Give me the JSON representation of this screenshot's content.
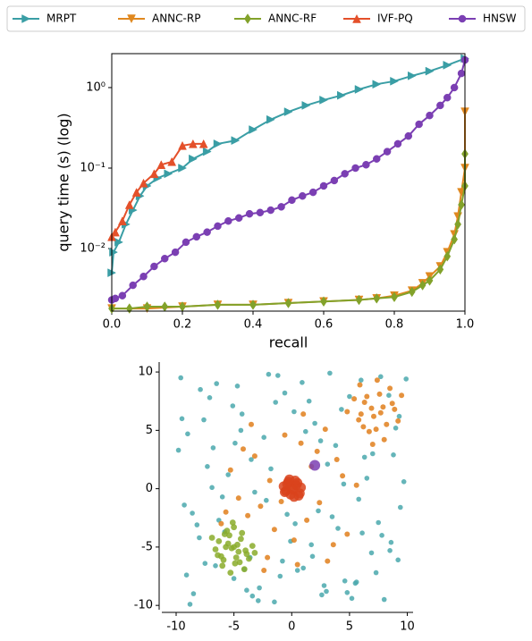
{
  "chart_data": [
    {
      "type": "line",
      "xlabel": "recall",
      "ylabel": "query time (s) (log)",
      "yscale": "log",
      "legend": "top",
      "frame": true,
      "xlim": [
        0,
        1
      ],
      "ylim": [
        0.00167,
        2.64
      ],
      "xticks": [
        {
          "value": 0,
          "label": "0.0"
        },
        0.2,
        0.4,
        0.6,
        0.8,
        {
          "value": 1,
          "label": "1.0"
        }
      ],
      "yticks": [
        {
          "value": 0.01,
          "label": "10⁻²"
        },
        {
          "value": 0.1,
          "label": "10⁻¹"
        },
        {
          "value": 1,
          "label": "10⁰"
        }
      ],
      "series": [
        {
          "name": "MRPT",
          "color": "#3a9ea5",
          "marker": "triangle-right",
          "x": [
            0.0,
            0.005,
            0.02,
            0.04,
            0.06,
            0.08,
            0.1,
            0.13,
            0.16,
            0.2,
            0.23,
            0.27,
            0.3,
            0.35,
            0.4,
            0.45,
            0.5,
            0.55,
            0.6,
            0.65,
            0.7,
            0.75,
            0.8,
            0.85,
            0.9,
            0.95,
            1.0
          ],
          "values": [
            0.005,
            0.009,
            0.012,
            0.02,
            0.03,
            0.045,
            0.06,
            0.075,
            0.085,
            0.1,
            0.13,
            0.16,
            0.2,
            0.22,
            0.3,
            0.4,
            0.5,
            0.6,
            0.7,
            0.8,
            0.95,
            1.1,
            1.2,
            1.4,
            1.6,
            1.9,
            2.3
          ]
        },
        {
          "name": "ANNC-RP",
          "color": "#e0881f",
          "marker": "triangle-down",
          "x": [
            0.0,
            0.1,
            0.2,
            0.3,
            0.4,
            0.5,
            0.6,
            0.7,
            0.75,
            0.8,
            0.85,
            0.88,
            0.9,
            0.93,
            0.95,
            0.97,
            0.98,
            0.99,
            1.0,
            1.0
          ],
          "values": [
            0.0018,
            0.0018,
            0.0019,
            0.002,
            0.002,
            0.0021,
            0.0022,
            0.0023,
            0.0024,
            0.0026,
            0.003,
            0.0037,
            0.0045,
            0.006,
            0.009,
            0.015,
            0.025,
            0.05,
            0.1,
            0.5
          ]
        },
        {
          "name": "ANNC-RF",
          "color": "#82a22a",
          "marker": "diamond",
          "x": [
            0.0,
            0.05,
            0.1,
            0.15,
            0.2,
            0.3,
            0.4,
            0.5,
            0.6,
            0.7,
            0.75,
            0.8,
            0.85,
            0.88,
            0.9,
            0.93,
            0.95,
            0.97,
            0.98,
            0.99,
            1.0,
            1.0
          ],
          "values": [
            0.0018,
            0.0018,
            0.0019,
            0.0019,
            0.0019,
            0.002,
            0.002,
            0.0021,
            0.0022,
            0.0023,
            0.0024,
            0.0025,
            0.0029,
            0.0035,
            0.004,
            0.0055,
            0.008,
            0.013,
            0.02,
            0.035,
            0.06,
            0.15
          ]
        },
        {
          "name": "IVF-PQ",
          "color": "#e4502a",
          "marker": "triangle-up",
          "x": [
            0.0,
            0.01,
            0.03,
            0.05,
            0.07,
            0.09,
            0.12,
            0.14,
            0.17,
            0.2,
            0.23,
            0.26
          ],
          "values": [
            0.014,
            0.016,
            0.022,
            0.035,
            0.05,
            0.065,
            0.085,
            0.11,
            0.12,
            0.19,
            0.2,
            0.2
          ]
        },
        {
          "name": "HNSW",
          "color": "#7b3fb3",
          "marker": "circle",
          "x": [
            0.0,
            0.01,
            0.03,
            0.06,
            0.09,
            0.12,
            0.15,
            0.18,
            0.21,
            0.24,
            0.27,
            0.3,
            0.33,
            0.36,
            0.39,
            0.42,
            0.45,
            0.48,
            0.51,
            0.54,
            0.57,
            0.6,
            0.63,
            0.66,
            0.69,
            0.72,
            0.75,
            0.78,
            0.81,
            0.84,
            0.87,
            0.9,
            0.93,
            0.95,
            0.97,
            0.99,
            1.0
          ],
          "values": [
            0.0023,
            0.0024,
            0.0026,
            0.0035,
            0.0045,
            0.006,
            0.0075,
            0.009,
            0.012,
            0.014,
            0.016,
            0.019,
            0.022,
            0.024,
            0.027,
            0.028,
            0.03,
            0.033,
            0.04,
            0.045,
            0.05,
            0.06,
            0.07,
            0.085,
            0.1,
            0.11,
            0.13,
            0.16,
            0.2,
            0.25,
            0.35,
            0.45,
            0.6,
            0.75,
            1.0,
            1.5,
            2.2
          ]
        }
      ]
    },
    {
      "type": "scatter",
      "xlim": [
        -11.47,
        10.5
      ],
      "ylim": [
        -10.6,
        10.85
      ],
      "xticks": [
        -10,
        -5,
        0,
        5,
        10
      ],
      "yticks": [
        -10,
        -5,
        0,
        5,
        10
      ],
      "series": [
        {
          "color": "#4aa8ad",
          "x": [
            -9.6,
            -8.2,
            -7.1,
            -5.5,
            -3.9,
            -2.4,
            -0.8,
            0.9,
            2.3,
            3.8,
            5.2,
            6.9,
            8.4,
            9.7,
            -9.1,
            -7.6,
            -6.3,
            -4.7,
            -3.2,
            -1.5,
            0.2,
            1.7,
            3.1,
            4.6,
            6.1,
            7.7,
            9.2,
            -9.8,
            -8.5,
            -6.9,
            -5.1,
            -3.6,
            -2.0,
            -0.4,
            1.2,
            2.8,
            4.3,
            5.8,
            7.3,
            8.8,
            -9.3,
            -7.9,
            -6.6,
            -4.9,
            -3.4,
            -1.8,
            -0.1,
            1.5,
            3.0,
            4.5,
            6.0,
            7.5,
            9.0,
            -9.5,
            -8.0,
            -6.5,
            -5.0,
            -3.5,
            -2.2,
            -0.6,
            1.0,
            2.5,
            4.0,
            5.5,
            7.0,
            8.5,
            9.9,
            -8.8,
            -7.3,
            -5.8,
            -4.3,
            -2.8,
            -1.2,
            0.5,
            2.0,
            3.5,
            5.0,
            6.5,
            8.0,
            9.4,
            -9.0,
            -7.5,
            -6.0,
            -4.4,
            -2.9,
            -1.4,
            0.3,
            1.8,
            3.3,
            4.8,
            6.3,
            7.8,
            9.3,
            -8.6,
            -6.8,
            -4.1,
            -1.0,
            2.6,
            5.6,
            8.6
          ],
          "values": [
            9.5,
            -3.1,
            7.8,
            1.2,
            -8.7,
            4.4,
            -6.2,
            9.1,
            -1.9,
            3.7,
            -9.4,
            -5.5,
            8.0,
            0.6,
            -7.4,
            5.9,
            -2.7,
            8.8,
            -0.3,
            -9.7,
            6.6,
            -4.8,
            2.1,
            -7.9,
            -3.8,
            9.6,
            -6.1,
            3.3,
            -9.0,
            0.1,
            7.1,
            -5.9,
            9.8,
            -2.2,
            4.9,
            -8.3,
            6.8,
            -0.9,
            -7.2,
            2.9,
            -1.4,
            8.5,
            -6.6,
            3.9,
            -9.2,
            1.7,
            -4.5,
            7.5,
            -8.8,
            0.4,
            9.3,
            -2.9,
            5.2,
            6.0,
            -4.2,
            9.0,
            -7.7,
            2.5,
            -1.0,
            8.2,
            -6.8,
            4.1,
            -3.4,
            -8.1,
            3.0,
            -5.3,
            9.4,
            -9.9,
            1.9,
            -3.7,
            6.4,
            -8.5,
            9.7,
            -7.0,
            5.6,
            -2.4,
            7.9,
            0.9,
            -9.5,
            -1.6,
            4.7,
            -6.4,
            -0.7,
            5.0,
            -9.6,
            7.4,
            -3.0,
            -5.8,
            9.9,
            -8.9,
            2.7,
            -4.0,
            6.2,
            -2.1,
            3.5,
            -6.9,
            -7.5,
            -9.1,
            -8.0,
            -4.6
          ]
        },
        {
          "color": "#e07f1c",
          "x": [
            -3.2,
            -1.5,
            0.8,
            2.4,
            -4.6,
            3.9,
            -2.1,
            1.3,
            -0.6,
            4.8,
            -5.3,
            2.9,
            -3.8,
            0.2,
            -1.9,
            3.1,
            -4.2,
            1.7,
            -2.7,
            5.6,
            -6.1,
            0.5,
            3.6,
            -0.9,
            -3.5,
            2.2,
            4.4,
            -5.7,
            1.0,
            -2.4,
            7.1,
            6.3,
            8.2,
            5.8,
            7.6,
            8.9,
            6.7,
            7.9,
            5.4,
            6.0,
            8.5,
            7.3,
            6.9,
            9.2,
            5.9,
            7.7,
            8.0,
            6.5,
            7.4,
            4.8,
            8.7,
            6.2,
            7.0,
            9.5
          ],
          "values": [
            2.8,
            -3.5,
            3.9,
            -1.2,
            -0.8,
            2.5,
            -5.9,
            -2.7,
            4.6,
            -3.9,
            1.6,
            5.1,
            -2.3,
            -4.4,
            0.7,
            -6.2,
            3.4,
            1.9,
            -1.5,
            0.3,
            -3.0,
            -6.5,
            -4.8,
            -1.1,
            5.5,
            3.2,
            1.1,
            -2.0,
            6.4,
            -7.0,
            6.2,
            7.4,
            5.5,
            5.9,
            8.1,
            6.8,
            4.9,
            7.0,
            7.7,
            6.4,
            8.6,
            5.1,
            6.9,
            5.8,
            8.9,
            6.5,
            4.2,
            7.9,
            9.3,
            6.6,
            7.3,
            5.3,
            3.8,
            8.0
          ]
        },
        {
          "color": "#8aab2a",
          "x": [
            -5.2,
            -4.4,
            -6.1,
            -5.8,
            -3.9,
            -4.9,
            -5.5,
            -6.6,
            -4.1,
            -5.0,
            -3.4,
            -5.9,
            -4.6,
            -6.3,
            -5.3,
            -4.3,
            -3.7,
            -5.7,
            -6.9,
            -4.8,
            -5.1,
            -4.0,
            -6.0,
            -5.4,
            -3.2,
            -4.7,
            -5.6,
            -6.4,
            -4.5,
            -5.0
          ],
          "values": [
            -5.1,
            -4.3,
            -5.8,
            -3.9,
            -5.6,
            -6.4,
            -4.7,
            -5.2,
            -6.9,
            -3.3,
            -4.9,
            -6.1,
            -5.4,
            -4.5,
            -7.2,
            -3.8,
            -6.0,
            -5.0,
            -4.2,
            -5.9,
            -2.9,
            -5.3,
            -6.6,
            -4.0,
            -5.5,
            -4.8,
            -3.6,
            -5.7,
            -6.3,
            -5.0
          ]
        },
        {
          "color": "#d9431c",
          "x": [
            0.0,
            0.4,
            -0.5,
            0.7,
            -0.3,
            0.2,
            -0.7,
            0.5,
            -0.1,
            0.8,
            -0.6,
            0.3,
            -0.4,
            0.1,
            0.6,
            -0.2
          ],
          "values": [
            0.0,
            0.3,
            -0.2,
            -0.4,
            0.6,
            -0.7,
            0.2,
            0.5,
            -0.5,
            0.1,
            -0.3,
            0.7,
            0.4,
            -0.1,
            -0.6,
            0.8
          ]
        },
        {
          "color": "#7b3fb3",
          "x": [
            2
          ],
          "values": [
            2
          ]
        }
      ]
    }
  ]
}
